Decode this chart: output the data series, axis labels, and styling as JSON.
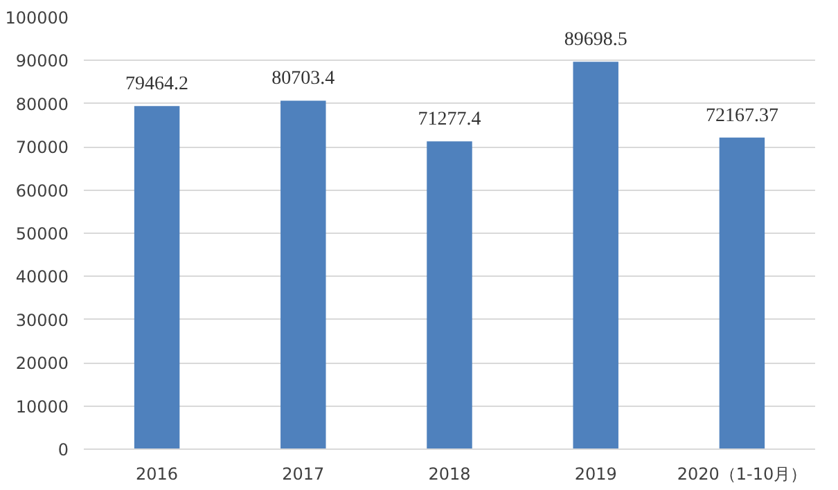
{
  "chart_data": {
    "type": "bar",
    "categories": [
      "2016",
      "2017",
      "2018",
      "2019",
      "2020（1-10月）"
    ],
    "values": [
      79464.2,
      80703.4,
      71277.4,
      89698.5,
      72167.37
    ],
    "color": "#4f81bd",
    "ylim": [
      0,
      100000
    ],
    "yticks": [
      0,
      10000,
      20000,
      30000,
      40000,
      50000,
      60000,
      70000,
      80000,
      90000,
      100000
    ],
    "grid": "y",
    "data_labels": true
  }
}
